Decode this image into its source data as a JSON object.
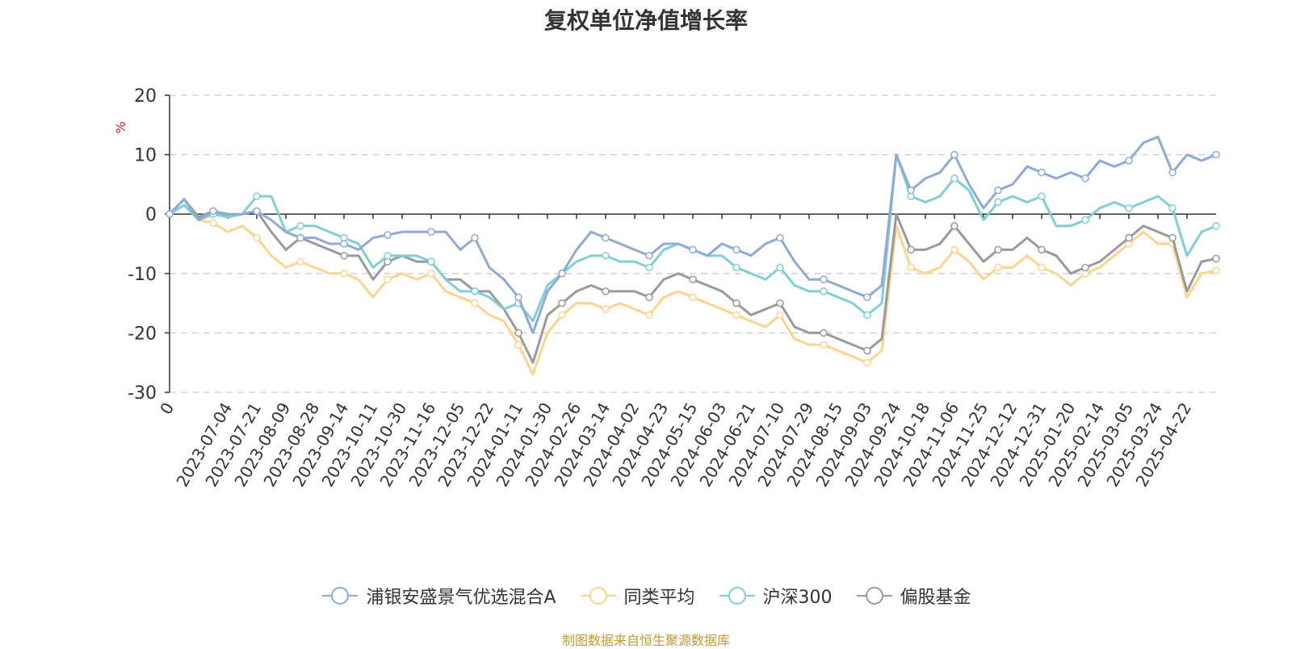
{
  "page": {
    "title": "复权单位净值增长率",
    "source": "制图数据来自恒生聚源数据库"
  },
  "colors": {
    "fund": "#8eaad8",
    "peer_avg": "#fdd48b",
    "hs300": "#7fd0d3",
    "equity_fund": "#9a9a9a",
    "unit": "#e02020"
  },
  "chart_data": {
    "type": "line",
    "title": "复权单位净值增长率",
    "ylabel": "%",
    "ylim": [
      -30,
      20
    ],
    "yticks": [
      20,
      10,
      0,
      -10,
      -20,
      -30
    ],
    "grid": true,
    "legend_position": "bottom",
    "x_labels": [
      "0",
      "2023-07-04",
      "2023-07-21",
      "2023-08-09",
      "2023-08-28",
      "2023-09-14",
      "2023-10-11",
      "2023-10-30",
      "2023-11-16",
      "2023-12-05",
      "2023-12-22",
      "2024-01-11",
      "2024-01-30",
      "2024-02-26",
      "2024-03-14",
      "2024-04-02",
      "2024-04-23",
      "2024-05-15",
      "2024-06-03",
      "2024-06-21",
      "2024-07-10",
      "2024-07-29",
      "2024-08-15",
      "2024-09-03",
      "2024-09-24",
      "2024-10-18",
      "2024-11-06",
      "2024-11-25",
      "2024-12-12",
      "2024-12-31",
      "2025-01-20",
      "2025-02-14",
      "2025-03-05",
      "2025-03-24",
      "2025-04-22"
    ],
    "series": [
      {
        "name": "浦银安盛景气优选混合A",
        "values": [
          [
            0,
            0
          ],
          [
            0.5,
            2.5
          ],
          [
            1,
            -1
          ],
          [
            1.5,
            0.5
          ],
          [
            2,
            0
          ],
          [
            2.5,
            0
          ],
          [
            3,
            0.5
          ],
          [
            3.5,
            -1
          ],
          [
            4,
            -3
          ],
          [
            4.5,
            -4
          ],
          [
            5,
            -4
          ],
          [
            5.5,
            -5
          ],
          [
            6,
            -5
          ],
          [
            6.5,
            -6
          ],
          [
            7,
            -4
          ],
          [
            7.5,
            -3.5
          ],
          [
            8,
            -3
          ],
          [
            8.5,
            -3
          ],
          [
            9,
            -3
          ],
          [
            9.5,
            -3
          ],
          [
            10,
            -6
          ],
          [
            10.5,
            -4
          ],
          [
            11,
            -9
          ],
          [
            11.5,
            -11
          ],
          [
            12,
            -14
          ],
          [
            12.5,
            -20
          ],
          [
            13,
            -13
          ],
          [
            13.5,
            -10
          ],
          [
            14,
            -6
          ],
          [
            14.5,
            -3
          ],
          [
            15,
            -4
          ],
          [
            15.5,
            -5
          ],
          [
            16,
            -6
          ],
          [
            16.5,
            -7
          ],
          [
            17,
            -5
          ],
          [
            17.5,
            -5
          ],
          [
            18,
            -6
          ],
          [
            18.5,
            -7
          ],
          [
            19,
            -5
          ],
          [
            19.5,
            -6
          ],
          [
            20,
            -7
          ],
          [
            20.5,
            -5
          ],
          [
            21,
            -4
          ],
          [
            21.5,
            -8
          ],
          [
            22,
            -11
          ],
          [
            22.5,
            -11
          ],
          [
            23,
            -12
          ],
          [
            23.5,
            -13
          ],
          [
            24,
            -14
          ],
          [
            24.5,
            -12
          ],
          [
            25,
            10
          ],
          [
            25.5,
            4
          ],
          [
            26,
            6
          ],
          [
            26.5,
            7
          ],
          [
            27,
            10
          ],
          [
            27.5,
            5
          ],
          [
            28,
            1
          ],
          [
            28.5,
            4
          ],
          [
            29,
            5
          ],
          [
            29.5,
            8
          ],
          [
            30,
            7
          ],
          [
            30.5,
            6
          ],
          [
            31,
            7
          ],
          [
            31.5,
            6
          ],
          [
            32,
            9
          ],
          [
            32.5,
            8
          ],
          [
            33,
            9
          ],
          [
            33.5,
            12
          ],
          [
            34,
            13
          ],
          [
            34.5,
            7
          ],
          [
            35,
            10
          ],
          [
            35.5,
            9
          ],
          [
            36,
            10
          ]
        ]
      },
      {
        "name": "同类平均",
        "values": [
          [
            0,
            0
          ],
          [
            0.5,
            2.5
          ],
          [
            1,
            -1
          ],
          [
            1.5,
            -1.5
          ],
          [
            2,
            -3
          ],
          [
            2.5,
            -2
          ],
          [
            3,
            -4
          ],
          [
            3.5,
            -7
          ],
          [
            4,
            -9
          ],
          [
            4.5,
            -8
          ],
          [
            5,
            -9
          ],
          [
            5.5,
            -10
          ],
          [
            6,
            -10
          ],
          [
            6.5,
            -11
          ],
          [
            7,
            -14
          ],
          [
            7.5,
            -11
          ],
          [
            8,
            -10
          ],
          [
            8.5,
            -11
          ],
          [
            9,
            -10
          ],
          [
            9.5,
            -13
          ],
          [
            10,
            -14
          ],
          [
            10.5,
            -15
          ],
          [
            11,
            -17
          ],
          [
            11.5,
            -18
          ],
          [
            12,
            -22
          ],
          [
            12.5,
            -27
          ],
          [
            13,
            -20
          ],
          [
            13.5,
            -17
          ],
          [
            14,
            -15
          ],
          [
            14.5,
            -15
          ],
          [
            15,
            -16
          ],
          [
            15.5,
            -15
          ],
          [
            16,
            -16
          ],
          [
            16.5,
            -17
          ],
          [
            17,
            -14
          ],
          [
            17.5,
            -13
          ],
          [
            18,
            -14
          ],
          [
            18.5,
            -15
          ],
          [
            19,
            -16
          ],
          [
            19.5,
            -17
          ],
          [
            20,
            -18
          ],
          [
            20.5,
            -19
          ],
          [
            21,
            -17
          ],
          [
            21.5,
            -21
          ],
          [
            22,
            -22
          ],
          [
            22.5,
            -22
          ],
          [
            23,
            -23
          ],
          [
            23.5,
            -24
          ],
          [
            24,
            -25
          ],
          [
            24.5,
            -23
          ],
          [
            25,
            -2
          ],
          [
            25.5,
            -9
          ],
          [
            26,
            -10
          ],
          [
            26.5,
            -9
          ],
          [
            27,
            -6
          ],
          [
            27.5,
            -8
          ],
          [
            28,
            -11
          ],
          [
            28.5,
            -9
          ],
          [
            29,
            -9
          ],
          [
            29.5,
            -7
          ],
          [
            30,
            -9
          ],
          [
            30.5,
            -10
          ],
          [
            31,
            -12
          ],
          [
            31.5,
            -10
          ],
          [
            32,
            -9
          ],
          [
            32.5,
            -7
          ],
          [
            33,
            -5
          ],
          [
            33.5,
            -3
          ],
          [
            34,
            -5
          ],
          [
            34.5,
            -5
          ],
          [
            35,
            -14
          ],
          [
            35.5,
            -10
          ],
          [
            36,
            -9.5
          ]
        ]
      },
      {
        "name": "沪深300",
        "values": [
          [
            0,
            0
          ],
          [
            0.5,
            1.5
          ],
          [
            1,
            -1
          ],
          [
            1.5,
            0
          ],
          [
            2,
            -0.5
          ],
          [
            2.5,
            0
          ],
          [
            3,
            3
          ],
          [
            3.5,
            3
          ],
          [
            4,
            -3
          ],
          [
            4.5,
            -2
          ],
          [
            5,
            -2
          ],
          [
            5.5,
            -3
          ],
          [
            6,
            -4
          ],
          [
            6.5,
            -5
          ],
          [
            7,
            -9
          ],
          [
            7.5,
            -7
          ],
          [
            8,
            -7
          ],
          [
            8.5,
            -7
          ],
          [
            9,
            -8
          ],
          [
            9.5,
            -11
          ],
          [
            10,
            -13
          ],
          [
            10.5,
            -13
          ],
          [
            11,
            -14
          ],
          [
            11.5,
            -16
          ],
          [
            12,
            -15
          ],
          [
            12.5,
            -18
          ],
          [
            13,
            -12
          ],
          [
            13.5,
            -10
          ],
          [
            14,
            -8
          ],
          [
            14.5,
            -7
          ],
          [
            15,
            -7
          ],
          [
            15.5,
            -8
          ],
          [
            16,
            -8
          ],
          [
            16.5,
            -9
          ],
          [
            17,
            -6
          ],
          [
            17.5,
            -5
          ],
          [
            18,
            -6
          ],
          [
            18.5,
            -7
          ],
          [
            19,
            -7
          ],
          [
            19.5,
            -9
          ],
          [
            20,
            -10
          ],
          [
            20.5,
            -11
          ],
          [
            21,
            -9
          ],
          [
            21.5,
            -12
          ],
          [
            22,
            -13
          ],
          [
            22.5,
            -13
          ],
          [
            23,
            -14
          ],
          [
            23.5,
            -15
          ],
          [
            24,
            -17
          ],
          [
            24.5,
            -15
          ],
          [
            25,
            10
          ],
          [
            25.5,
            3
          ],
          [
            26,
            2
          ],
          [
            26.5,
            3
          ],
          [
            27,
            6
          ],
          [
            27.5,
            4
          ],
          [
            28,
            -1
          ],
          [
            28.5,
            2
          ],
          [
            29,
            3
          ],
          [
            29.5,
            2
          ],
          [
            30,
            3
          ],
          [
            30.5,
            -2
          ],
          [
            31,
            -2
          ],
          [
            31.5,
            -1
          ],
          [
            32,
            1
          ],
          [
            32.5,
            2
          ],
          [
            33,
            1
          ],
          [
            33.5,
            2
          ],
          [
            34,
            3
          ],
          [
            34.5,
            1
          ],
          [
            35,
            -7
          ],
          [
            35.5,
            -3
          ],
          [
            36,
            -2
          ]
        ]
      },
      {
        "name": "偏股基金",
        "values": [
          [
            0,
            0
          ],
          [
            0.5,
            2.5
          ],
          [
            1,
            -0.5
          ],
          [
            1.5,
            0.5
          ],
          [
            2,
            -0.5
          ],
          [
            2.5,
            0
          ],
          [
            3,
            0.5
          ],
          [
            3.5,
            -3
          ],
          [
            4,
            -6
          ],
          [
            4.5,
            -4
          ],
          [
            5,
            -5
          ],
          [
            5.5,
            -6
          ],
          [
            6,
            -7
          ],
          [
            6.5,
            -7
          ],
          [
            7,
            -11
          ],
          [
            7.5,
            -8
          ],
          [
            8,
            -7
          ],
          [
            8.5,
            -8
          ],
          [
            9,
            -8
          ],
          [
            9.5,
            -11
          ],
          [
            10,
            -11
          ],
          [
            10.5,
            -13
          ],
          [
            11,
            -13
          ],
          [
            11.5,
            -16
          ],
          [
            12,
            -20
          ],
          [
            12.5,
            -25
          ],
          [
            13,
            -17
          ],
          [
            13.5,
            -15
          ],
          [
            14,
            -13
          ],
          [
            14.5,
            -12
          ],
          [
            15,
            -13
          ],
          [
            15.5,
            -13
          ],
          [
            16,
            -13
          ],
          [
            16.5,
            -14
          ],
          [
            17,
            -11
          ],
          [
            17.5,
            -10
          ],
          [
            18,
            -11
          ],
          [
            18.5,
            -12
          ],
          [
            19,
            -13
          ],
          [
            19.5,
            -15
          ],
          [
            20,
            -17
          ],
          [
            20.5,
            -16
          ],
          [
            21,
            -15
          ],
          [
            21.5,
            -19
          ],
          [
            22,
            -20
          ],
          [
            22.5,
            -20
          ],
          [
            23,
            -21
          ],
          [
            23.5,
            -22
          ],
          [
            24,
            -23
          ],
          [
            24.5,
            -21
          ],
          [
            25,
            0
          ],
          [
            25.5,
            -6
          ],
          [
            26,
            -6
          ],
          [
            26.5,
            -5
          ],
          [
            27,
            -2
          ],
          [
            27.5,
            -5
          ],
          [
            28,
            -8
          ],
          [
            28.5,
            -6
          ],
          [
            29,
            -6
          ],
          [
            29.5,
            -4
          ],
          [
            30,
            -6
          ],
          [
            30.5,
            -7
          ],
          [
            31,
            -10
          ],
          [
            31.5,
            -9
          ],
          [
            32,
            -8
          ],
          [
            32.5,
            -6
          ],
          [
            33,
            -4
          ],
          [
            33.5,
            -2
          ],
          [
            34,
            -3
          ],
          [
            34.5,
            -4
          ],
          [
            35,
            -13
          ],
          [
            35.5,
            -8
          ],
          [
            36,
            -7.5
          ]
        ]
      }
    ]
  }
}
